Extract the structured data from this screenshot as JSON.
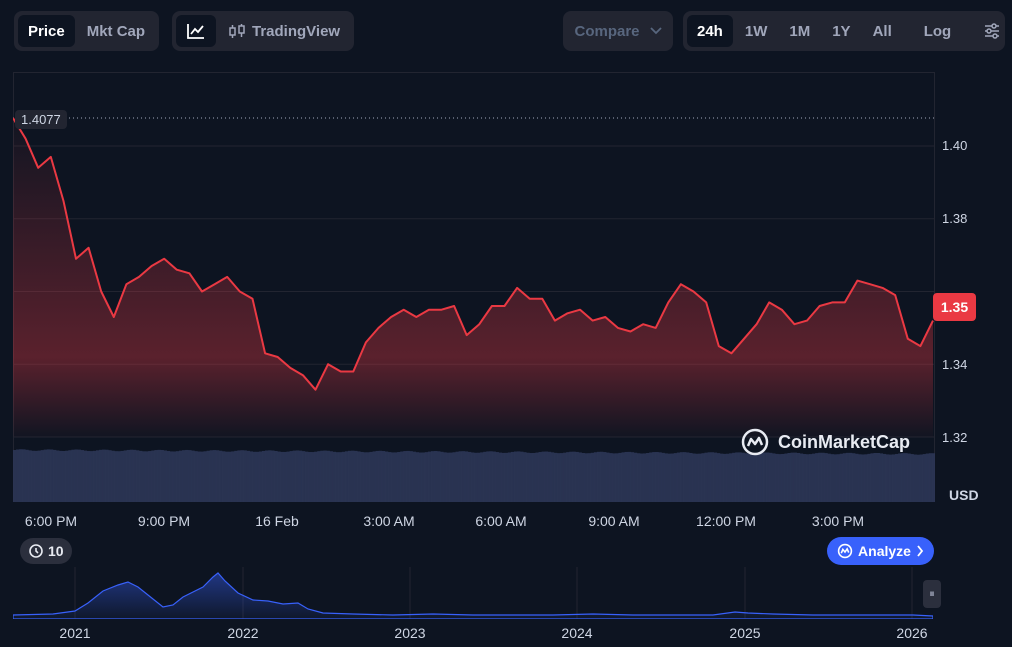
{
  "toolbar": {
    "type_tabs": [
      {
        "label": "Price",
        "active": true
      },
      {
        "label": "Mkt Cap",
        "active": false
      }
    ],
    "tradingview_label": "TradingView",
    "compare_label": "Compare",
    "ranges": [
      {
        "label": "24h",
        "active": true
      },
      {
        "label": "1W"
      },
      {
        "label": "1M"
      },
      {
        "label": "1Y"
      },
      {
        "label": "All"
      }
    ],
    "log_label": "Log"
  },
  "chart": {
    "open_price_label": "1.4077",
    "current_price_label": "1.35",
    "unit": "USD",
    "watermark": "CoinMarketCap",
    "y_ticks": [
      "1.40",
      "1.38",
      "1.36",
      "1.34",
      "1.32"
    ],
    "x_ticks": [
      "6:00 PM",
      "9:00 PM",
      "16 Feb",
      "3:00 AM",
      "6:00 AM",
      "9:00 AM",
      "12:00 PM",
      "3:00 PM"
    ]
  },
  "controls": {
    "history_count": "10",
    "analyze_label": "Analyze"
  },
  "navigator": {
    "year_ticks": [
      "2021",
      "2022",
      "2023",
      "2024",
      "2025",
      "2026"
    ]
  },
  "colors": {
    "background": "#0d1421",
    "line": "#ea3943",
    "accent": "#3861fb"
  },
  "chart_data": {
    "type": "line",
    "title": "",
    "xlabel": "",
    "ylabel": "USD",
    "ylim": [
      1.32,
      1.42
    ],
    "open_value": 1.4077,
    "x": [
      "16:20",
      "16:40",
      "17:00",
      "17:20",
      "17:40",
      "18:00",
      "18:20",
      "18:40",
      "19:00",
      "19:20",
      "19:40",
      "20:00",
      "20:20",
      "20:40",
      "21:00",
      "21:20",
      "21:40",
      "22:00",
      "22:20",
      "22:40",
      "23:00",
      "23:20",
      "23:40",
      "00:00",
      "00:20",
      "00:40",
      "01:00",
      "01:20",
      "01:40",
      "02:00",
      "02:20",
      "02:40",
      "03:00",
      "03:20",
      "03:40",
      "04:00",
      "04:20",
      "04:40",
      "05:00",
      "05:20",
      "05:40",
      "06:00",
      "06:20",
      "06:40",
      "07:00",
      "07:20",
      "07:40",
      "08:00",
      "08:20",
      "08:40",
      "09:00",
      "09:20",
      "09:40",
      "10:00",
      "10:20",
      "10:40",
      "11:00",
      "11:20",
      "11:40",
      "12:00",
      "12:20",
      "12:40",
      "13:00",
      "13:20",
      "13:40",
      "14:00",
      "14:20",
      "14:40",
      "15:00",
      "15:20",
      "15:40",
      "16:00",
      "16:20",
      "16:40"
    ],
    "series": [
      {
        "values": [
          1.4077,
          1.402,
          1.394,
          1.397,
          1.385,
          1.369,
          1.372,
          1.36,
          1.353,
          1.362,
          1.364,
          1.367,
          1.369,
          1.366,
          1.365,
          1.36,
          1.362,
          1.364,
          1.36,
          1.358,
          1.343,
          1.342,
          1.339,
          1.337,
          1.333,
          1.34,
          1.338,
          1.338,
          1.346,
          1.35,
          1.353,
          1.355,
          1.353,
          1.355,
          1.355,
          1.356,
          1.348,
          1.351,
          1.356,
          1.356,
          1.361,
          1.358,
          1.358,
          1.352,
          1.354,
          1.355,
          1.352,
          1.353,
          1.35,
          1.349,
          1.351,
          1.35,
          1.357,
          1.362,
          1.36,
          1.357,
          1.345,
          1.343,
          1.347,
          1.351,
          1.357,
          1.355,
          1.351,
          1.352,
          1.356,
          1.357,
          1.357,
          1.363,
          1.362,
          1.361,
          1.359,
          1.347,
          1.345,
          1.352
        ]
      }
    ]
  }
}
